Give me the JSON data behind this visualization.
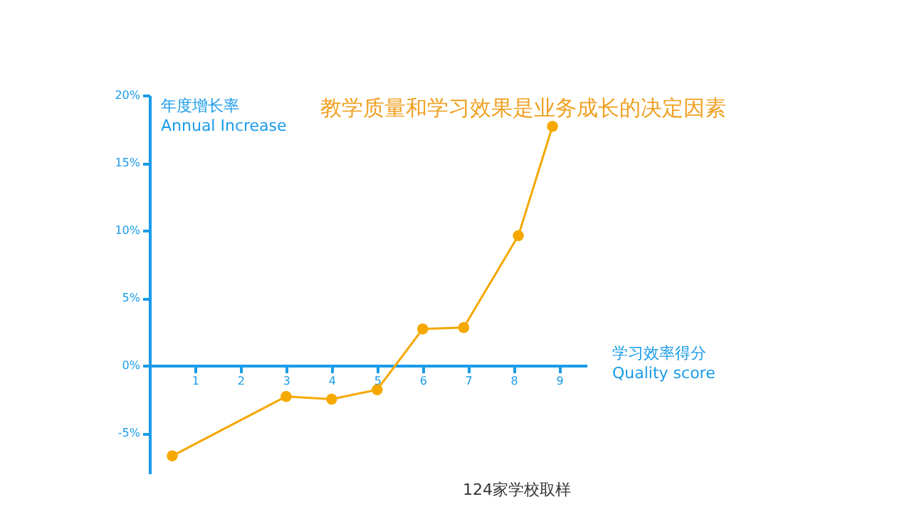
{
  "chart_data": {
    "type": "line",
    "title": "教学质量和学习效果是业务成长的决定因素",
    "xlabel": "学习效率得分\nQuality score",
    "ylabel": "年度增长率\nAnnual Increase",
    "annotations": [
      "124家学校取样"
    ],
    "x": [
      0.5,
      3,
      4,
      5,
      6,
      6.9,
      8.1,
      8.85
    ],
    "series": [
      {
        "color": "#f5a800",
        "values": [
          -6.7,
          -2.3,
          -2.5,
          -1.8,
          2.7,
          2.8,
          9.6,
          17.7
        ]
      }
    ],
    "xlim": [
      0,
      9.6
    ],
    "ylim": [
      -8,
      20
    ],
    "xticks": [
      1,
      2,
      3,
      4,
      5,
      6,
      7,
      8,
      9
    ],
    "yticks": [
      {
        "value": -5,
        "label": "-5%"
      },
      {
        "value": 0,
        "label": "0%"
      },
      {
        "value": 5,
        "label": "5%"
      },
      {
        "value": 10,
        "label": "10%"
      },
      {
        "value": 15,
        "label": "15%"
      },
      {
        "value": 20,
        "label": "20%"
      }
    ],
    "marker": "circle",
    "line_style": "solid",
    "grid": false
  }
}
